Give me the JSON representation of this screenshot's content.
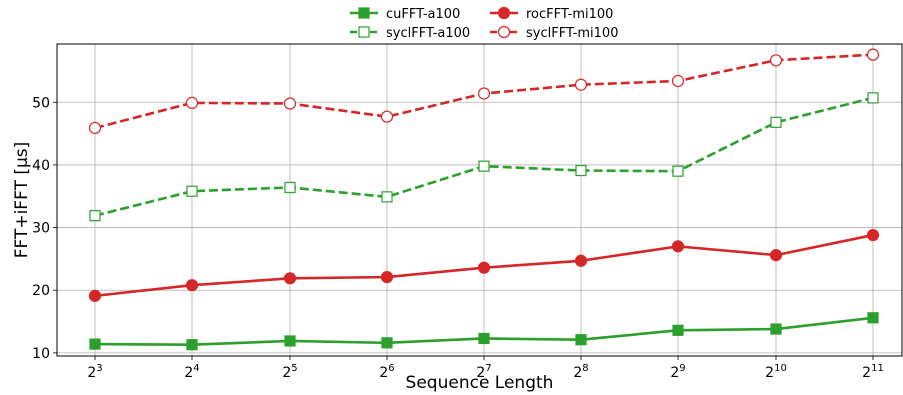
{
  "chart_data": {
    "type": "line",
    "xlabel": "Sequence Length",
    "ylabel": "FFT+iFFT [µs]",
    "x": [
      3,
      4,
      5,
      6,
      7,
      8,
      9,
      10,
      11
    ],
    "x_tick_base": "2",
    "x_tick_exponents": [
      "3",
      "4",
      "5",
      "6",
      "7",
      "8",
      "9",
      "10",
      "11"
    ],
    "yticks": [
      10,
      20,
      30,
      40,
      50
    ],
    "ylim": [
      9.5,
      59.3
    ],
    "grid": true,
    "legend_position": "top-center",
    "series": [
      {
        "name": "cuFFT-a100",
        "color": "#2ca02c",
        "line": "solid",
        "marker": "square-filled",
        "values": [
          11.4,
          11.3,
          11.9,
          11.6,
          12.3,
          12.1,
          13.6,
          13.8,
          15.6
        ]
      },
      {
        "name": "syclFFT-a100",
        "color": "#2ca02c",
        "line": "dashed",
        "marker": "square-open",
        "values": [
          31.9,
          35.8,
          36.4,
          34.9,
          39.8,
          39.1,
          39.0,
          46.8,
          50.7
        ]
      },
      {
        "name": "rocFFT-mi100",
        "color": "#d62728",
        "line": "solid",
        "marker": "circle-filled",
        "values": [
          19.1,
          20.8,
          21.9,
          22.1,
          23.6,
          24.7,
          27.0,
          25.6,
          28.8
        ]
      },
      {
        "name": "syclFFT-mi100",
        "color": "#d62728",
        "line": "dashed",
        "marker": "circle-open",
        "values": [
          45.9,
          49.9,
          49.8,
          47.7,
          51.4,
          52.8,
          53.4,
          56.7,
          57.6
        ]
      }
    ]
  }
}
